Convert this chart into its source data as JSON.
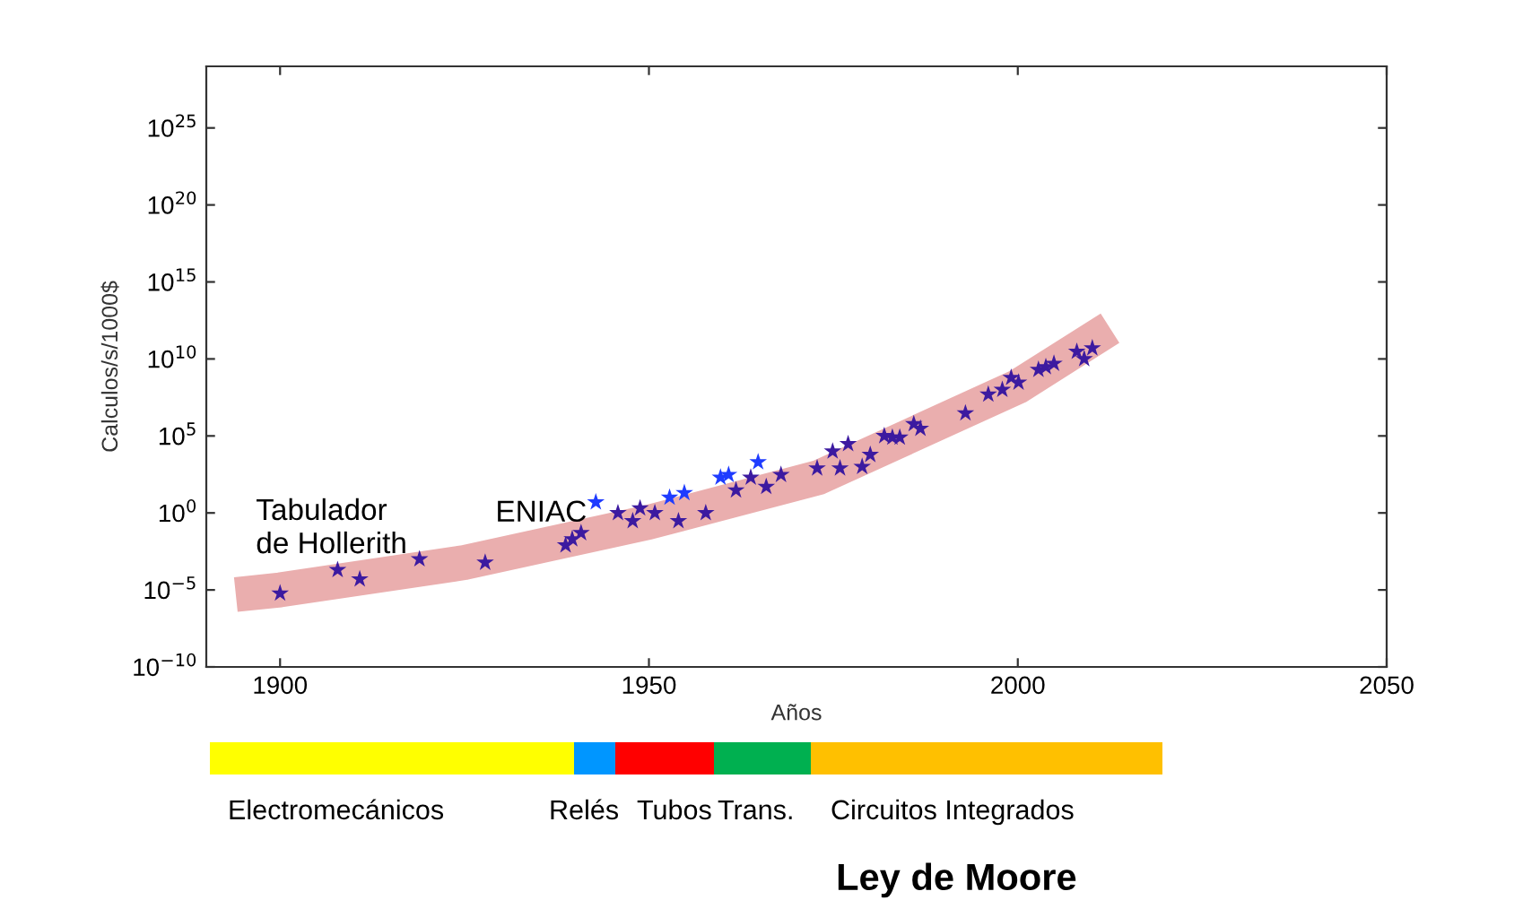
{
  "chart_data": {
    "type": "scatter",
    "title": "Ley de Moore",
    "xlabel": "Años",
    "ylabel": "Calculos/s/1000$",
    "log": "y",
    "grid": false,
    "xlim": [
      1890,
      2050
    ],
    "xticks": [
      1900,
      1950,
      2000,
      2050
    ],
    "ylim": [
      1e-10,
      1e+29
    ],
    "yticks": [
      {
        "value": 1e-10,
        "label": "10$^{−10}$"
      },
      {
        "value": 1e-05,
        "label": "10$^{−5}$"
      },
      {
        "value": 1,
        "label": "10$^{0}$"
      },
      {
        "value": 100000.0,
        "label": "10$^{5}$"
      },
      {
        "value": 10000000000.0,
        "label": "10$^{10}$"
      },
      {
        "value": 1000000000000000.0,
        "label": "10$^{15}$"
      },
      {
        "value": 1e+20,
        "label": "10$^{20}$"
      },
      {
        "value": 1e+25,
        "label": "10$^{25}$"
      }
    ],
    "series": [
      {
        "type": "line",
        "color": "#eaaeae",
        "x": [
          1894,
          1900,
          1925,
          1950,
          1973,
          2000,
          2012.5
        ],
        "values": [
          5e-06,
          1e-05,
          0.0006,
          0.25,
          200,
          160000000.0,
          1000000000000.0
        ]
      },
      {
        "type": "scatter",
        "marker": "star",
        "x": [
          1900,
          1907.8,
          1910.8,
          1918.9,
          1927.8,
          1938.7,
          1939.6,
          1940.8,
          1942.8,
          1945.8,
          1947.8,
          1948.8,
          1950.8,
          1952.8,
          1954.0,
          1954.8,
          1957.7,
          1959.7,
          1960.8,
          1961.8,
          1963.8,
          1964.8,
          1965.9,
          1967.9,
          1972.8,
          1974.9,
          1975.9,
          1977.0,
          1978.9,
          1980.0,
          1981.9,
          1983.0,
          1984.0,
          1985.9,
          1986.8,
          1992.9,
          1996.0,
          1997.9,
          1999.1,
          2000.1,
          2002.8,
          2003.8,
          2004.9,
          2008.0,
          2009.0,
          2010.1
        ],
        "values": [
          6e-06,
          0.0002,
          5e-05,
          0.001,
          0.0006,
          0.008,
          0.02,
          0.05,
          5,
          1,
          0.3,
          2,
          1,
          10,
          0.3,
          20,
          1,
          200,
          300,
          30,
          200,
          2000,
          50,
          300,
          800,
          10000.0,
          800,
          30000.0,
          1000.0,
          6000.0,
          100000.0,
          80000.0,
          80000.0,
          600000.0,
          300000.0,
          3000000.0,
          50000000.0,
          100000000.0,
          600000000.0,
          300000000.0,
          2000000000.0,
          3000000000.0,
          5000000000.0,
          30000000000.0,
          10000000000.0,
          50000000000.0
        ],
        "colors": [
          "#3c1aa0",
          "#3c1aa0",
          "#3c1aa0",
          "#3c1aa0",
          "#3c1aa0",
          "#3c1aa0",
          "#3c1aa0",
          "#3c1aa0",
          "#1f3cff",
          "#3c1aa0",
          "#3c1aa0",
          "#3c1aa0",
          "#3c1aa0",
          "#1f3cff",
          "#3c1aa0",
          "#1f3cff",
          "#3c1aa0",
          "#1f3cff",
          "#1f3cff",
          "#3c1aa0",
          "#3c1aa0",
          "#1f3cff",
          "#3c1aa0",
          "#3c1aa0",
          "#3c1aa0",
          "#3c1aa0",
          "#3c1aa0",
          "#3c1aa0",
          "#3c1aa0",
          "#3c1aa0",
          "#3c1aa0",
          "#3c1aa0",
          "#3c1aa0",
          "#3c1aa0",
          "#3c1aa0",
          "#3c1aa0",
          "#3c1aa0",
          "#3c1aa0",
          "#3c1aa0",
          "#3c1aa0",
          "#3c1aa0",
          "#3c1aa0",
          "#3c1aa0",
          "#3c1aa0",
          "#3c1aa0",
          "#3c1aa0"
        ]
      }
    ],
    "annotations": [
      "Tabulador\nde Hollerith",
      "ENIAC",
      "Electromecánicos",
      "Relés",
      "Tubos",
      "Trans.",
      "Circuitos Integrados"
    ]
  }
}
